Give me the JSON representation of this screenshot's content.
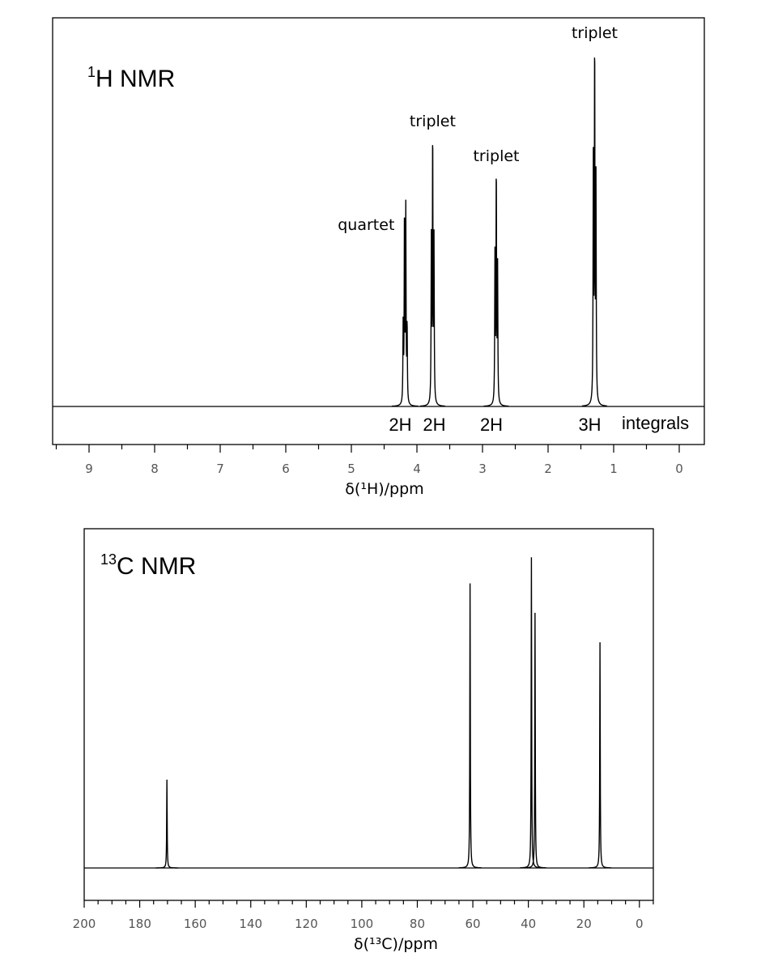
{
  "chart_data": [
    {
      "type": "line",
      "title": "H NMR",
      "title_superscript": "1",
      "xlabel": "δ(¹H)/ppm",
      "xlim": [
        9.6,
        -0.4
      ],
      "x_ticks": [
        9,
        8,
        7,
        6,
        5,
        4,
        3,
        2,
        1,
        0
      ],
      "inverted_x": true,
      "peaks": [
        {
          "shift": 4.18,
          "multiplicity": "quartet",
          "integral": "2H",
          "intensity": 0.5,
          "lines": [
            4.21,
            4.19,
            4.17,
            4.15
          ],
          "line_heights": [
            0.2,
            0.5,
            0.5,
            0.2
          ]
        },
        {
          "shift": 3.76,
          "multiplicity": "triplet",
          "integral": "2H",
          "intensity": 0.7,
          "lines": [
            3.78,
            3.76,
            3.74
          ],
          "line_heights": [
            0.42,
            0.7,
            0.42
          ]
        },
        {
          "shift": 2.79,
          "multiplicity": "triplet",
          "integral": "2H",
          "intensity": 0.61,
          "lines": [
            2.81,
            2.79,
            2.77
          ],
          "line_heights": [
            0.38,
            0.61,
            0.35
          ]
        },
        {
          "shift": 1.29,
          "multiplicity": "triplet",
          "integral": "3H",
          "intensity": 0.93,
          "lines": [
            1.31,
            1.29,
            1.27
          ],
          "line_heights": [
            0.62,
            0.93,
            0.57
          ]
        }
      ],
      "integrals_label": "integrals"
    },
    {
      "type": "line",
      "title": "C NMR",
      "title_superscript": "13",
      "xlabel": "δ(¹³C)/ppm",
      "xlim": [
        200,
        -5
      ],
      "x_ticks": [
        200,
        180,
        160,
        140,
        120,
        100,
        80,
        60,
        40,
        20,
        0
      ],
      "inverted_x": true,
      "peaks": [
        {
          "shift": 170.2,
          "intensity": 0.27
        },
        {
          "shift": 61.0,
          "intensity": 0.87
        },
        {
          "shift": 38.9,
          "intensity": 0.95
        },
        {
          "shift": 37.6,
          "intensity": 0.78
        },
        {
          "shift": 14.2,
          "intensity": 0.69
        }
      ]
    }
  ]
}
